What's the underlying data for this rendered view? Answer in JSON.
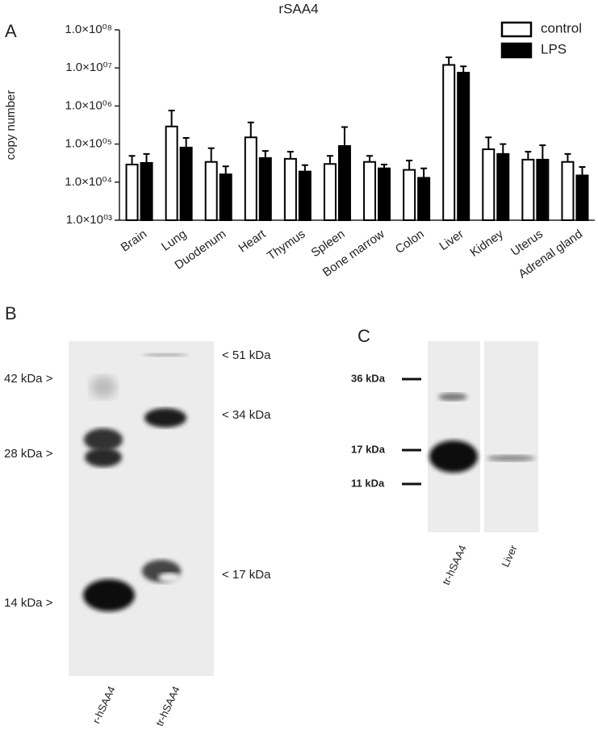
{
  "chart_data": {
    "type": "bar",
    "title": "rSAA4",
    "panel_label": "A",
    "y_label": "copy number",
    "log_scale": true,
    "categories": [
      "Brain",
      "Lung",
      "Duodenum",
      "Heart",
      "Thymus",
      "Spleen",
      "Bone marrow",
      "Colon",
      "Liver",
      "Kidney",
      "Uterus",
      "Adrenal gland"
    ],
    "series": [
      {
        "name": "control",
        "color": "#ffffff",
        "values": [
          29000,
          290000,
          34000,
          150000,
          41000,
          30000,
          34000,
          21000,
          12000000,
          73000,
          39000,
          34000
        ],
        "errors": [
          20000,
          470000,
          44000,
          220000,
          22000,
          19000,
          15000,
          16000,
          7000000,
          77000,
          24000,
          21000
        ]
      },
      {
        "name": "LPS",
        "color": "#000000",
        "values": [
          32000,
          81000,
          16000,
          43000,
          19000,
          89000,
          23000,
          13000,
          7500000,
          55000,
          39000,
          15000
        ],
        "errors": [
          23000,
          64000,
          10000,
          23000,
          9000,
          191000,
          6000,
          10000,
          3500000,
          45000,
          54000,
          10000
        ]
      }
    ],
    "ylim": [
      1000,
      100000000
    ],
    "yticks": [
      {
        "value": 1000,
        "label": "1.0×10⁰³"
      },
      {
        "value": 10000,
        "label": "1.0×10⁰⁴"
      },
      {
        "value": 100000,
        "label": "1.0×10⁰⁵"
      },
      {
        "value": 1000000,
        "label": "1.0×10⁰⁶"
      },
      {
        "value": 10000000,
        "label": "1.0×10⁰⁷"
      },
      {
        "value": 100000000,
        "label": "1.0×10⁰⁸"
      }
    ],
    "legend": "upper right"
  },
  "panel_b": {
    "label": "B",
    "left_markers": [
      "42 kDa >",
      "28 kDa >",
      "14 kDa >"
    ],
    "right_markers": [
      "< 51 kDa",
      "< 34 kDa",
      "< 17 kDa"
    ],
    "lanes": [
      "r-hSAA4",
      "tr-hSAA4"
    ]
  },
  "panel_c": {
    "label": "C",
    "markers": [
      "36 kDa",
      "17 kDa",
      "11 kDa"
    ],
    "lanes": [
      "tr-hSAA4",
      "Liver"
    ]
  }
}
